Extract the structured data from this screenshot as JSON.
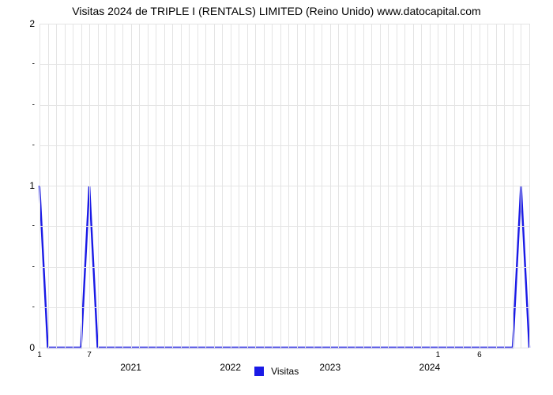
{
  "chart": {
    "type": "line",
    "title": "Visitas 2024 de TRIPLE I (RENTALS) LIMITED (Reino Unido) www.datocapital.com",
    "title_fontsize": 14,
    "title_fontweight": "normal",
    "legend": {
      "label": "Visitas",
      "color": "#1a1ae6",
      "position": "bottom-center",
      "fontsize": 12
    },
    "background_color": "#ffffff",
    "grid_color": "#e4e4e4",
    "line_color": "#1a1ae6",
    "line_width": 2.4,
    "xlim": [
      0,
      59
    ],
    "ylim": [
      0,
      2
    ],
    "ytick_major": [
      0,
      1,
      2
    ],
    "ytick_minor": [
      0.25,
      0.5,
      0.75,
      1.25,
      1.5,
      1.75
    ],
    "ytick_minor_label": "-",
    "xticks_major": [
      {
        "x": 11,
        "label": "2021"
      },
      {
        "x": 23,
        "label": "2022"
      },
      {
        "x": 35,
        "label": "2023"
      },
      {
        "x": 47,
        "label": "2024"
      }
    ],
    "xticks_minor": [
      {
        "x": 0,
        "label": "1"
      },
      {
        "x": 6,
        "label": "7"
      },
      {
        "x": 48,
        "label": "1"
      },
      {
        "x": 53,
        "label": "6"
      }
    ],
    "hgrid_positions": [
      0,
      0.25,
      0.5,
      0.75,
      1,
      1.25,
      1.5,
      1.75,
      2
    ],
    "vgrid_step": 1,
    "data_y": [
      1,
      0,
      0,
      0,
      0,
      0,
      1,
      0,
      0,
      0,
      0,
      0,
      0,
      0,
      0,
      0,
      0,
      0,
      0,
      0,
      0,
      0,
      0,
      0,
      0,
      0,
      0,
      0,
      0,
      0,
      0,
      0,
      0,
      0,
      0,
      0,
      0,
      0,
      0,
      0,
      0,
      0,
      0,
      0,
      0,
      0,
      0,
      0,
      0,
      0,
      0,
      0,
      0,
      0,
      0,
      0,
      0,
      0,
      1,
      0
    ]
  }
}
